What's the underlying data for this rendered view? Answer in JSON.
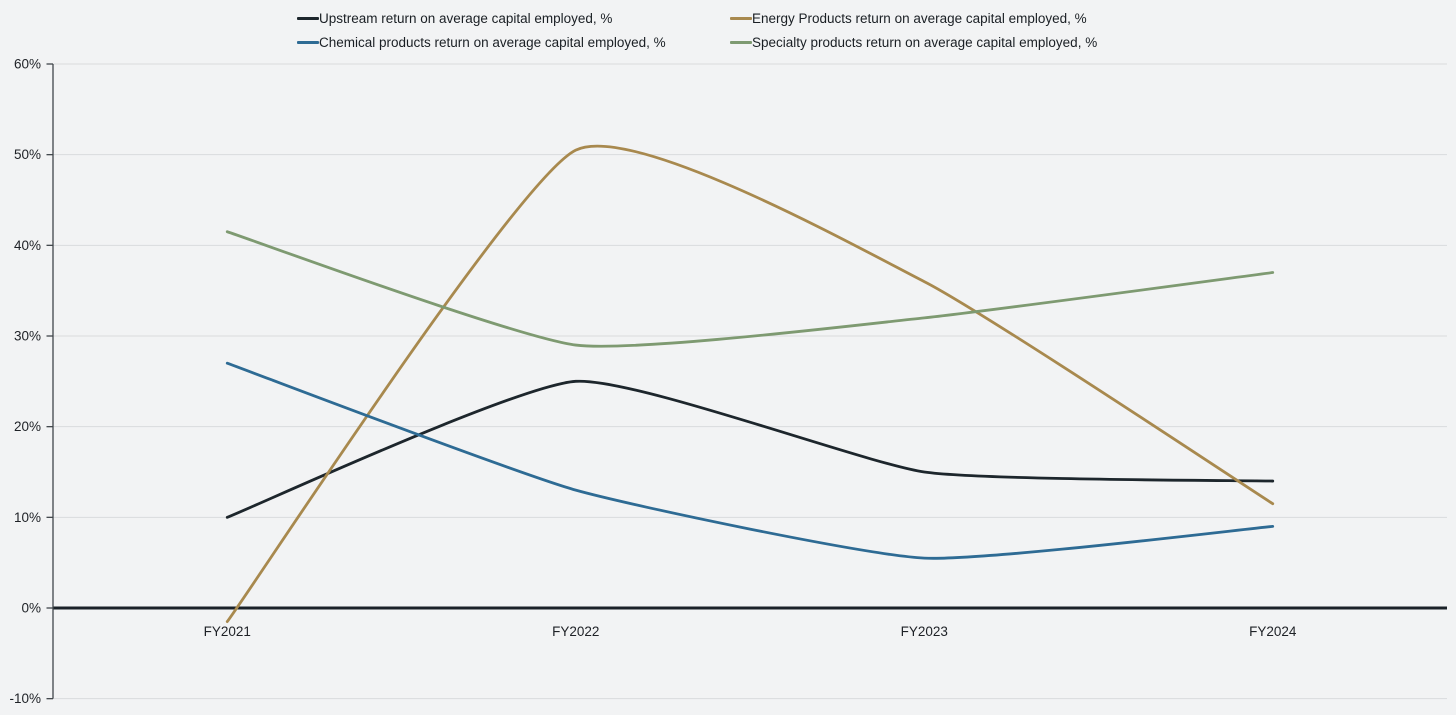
{
  "chart_data": {
    "type": "line",
    "title": "",
    "x_categories": [
      "FY2021",
      "FY2022",
      "FY2023",
      "FY2024"
    ],
    "series": [
      {
        "name": "Upstream return on average capital employed, %",
        "color": "#1d262c",
        "values": [
          10,
          25,
          15,
          14
        ]
      },
      {
        "name": "Energy Products return on average capital employed, %",
        "color": "#a8894e",
        "values": [
          -1.5,
          50.5,
          36,
          11.5
        ]
      },
      {
        "name": "Chemical products return on average capital employed, %",
        "color": "#2e6b94",
        "values": [
          27,
          13,
          5.5,
          9
        ]
      },
      {
        "name": "Specialty products return on average capital employed, %",
        "color": "#7e9a71",
        "values": [
          41.5,
          29,
          32,
          37
        ]
      }
    ],
    "y_axis": {
      "min": -10,
      "max": 60,
      "step": 10,
      "tick_labels": [
        "60%",
        "50%",
        "40%",
        "30%",
        "20%",
        "10%",
        "0%",
        "-10%"
      ]
    },
    "x_axis": {
      "tick_labels": [
        "FY2021",
        "FY2022",
        "FY2023",
        "FY2024"
      ]
    },
    "legend_position": "top-center",
    "grid": true,
    "style": {
      "background": "#f2f3f4",
      "gridline_color": "#d9dbdd",
      "zero_line_color": "#1a2128",
      "axis_color": "#40464b",
      "text_color": "#1e2126",
      "line_width": 2.8
    },
    "curve": "smoothed-spline"
  }
}
